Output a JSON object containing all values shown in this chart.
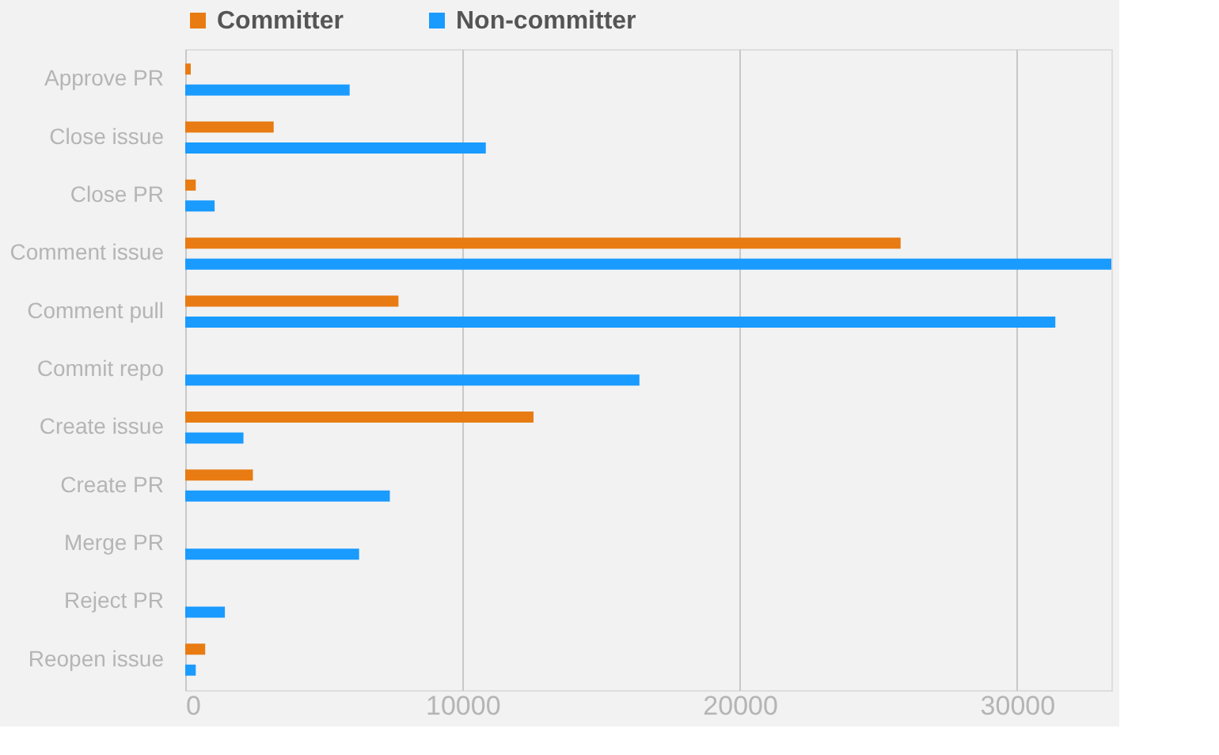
{
  "chart_data": {
    "type": "bar",
    "orientation": "horizontal",
    "categories": [
      "Approve PR",
      "Close issue",
      "Close PR",
      "Comment issue",
      "Comment pull",
      "Commit repo",
      "Create issue",
      "Create PR",
      "Merge PR",
      "Reject PR",
      "Reopen issue"
    ],
    "series": [
      {
        "name": "Committer",
        "color": "#e87b12",
        "values": [
          200,
          3190,
          380,
          25800,
          7690,
          null,
          12560,
          2440,
          0,
          0,
          720
        ]
      },
      {
        "name": "Non-committer",
        "color": "#1a9bff",
        "values": [
          5930,
          10840,
          1060,
          33400,
          31380,
          16380,
          2100,
          7380,
          6270,
          1430,
          380
        ]
      }
    ],
    "xlim": [
      0,
      33400
    ],
    "xticks": [
      0,
      10000,
      20000,
      30000
    ],
    "grid": "x",
    "legend": "top"
  }
}
